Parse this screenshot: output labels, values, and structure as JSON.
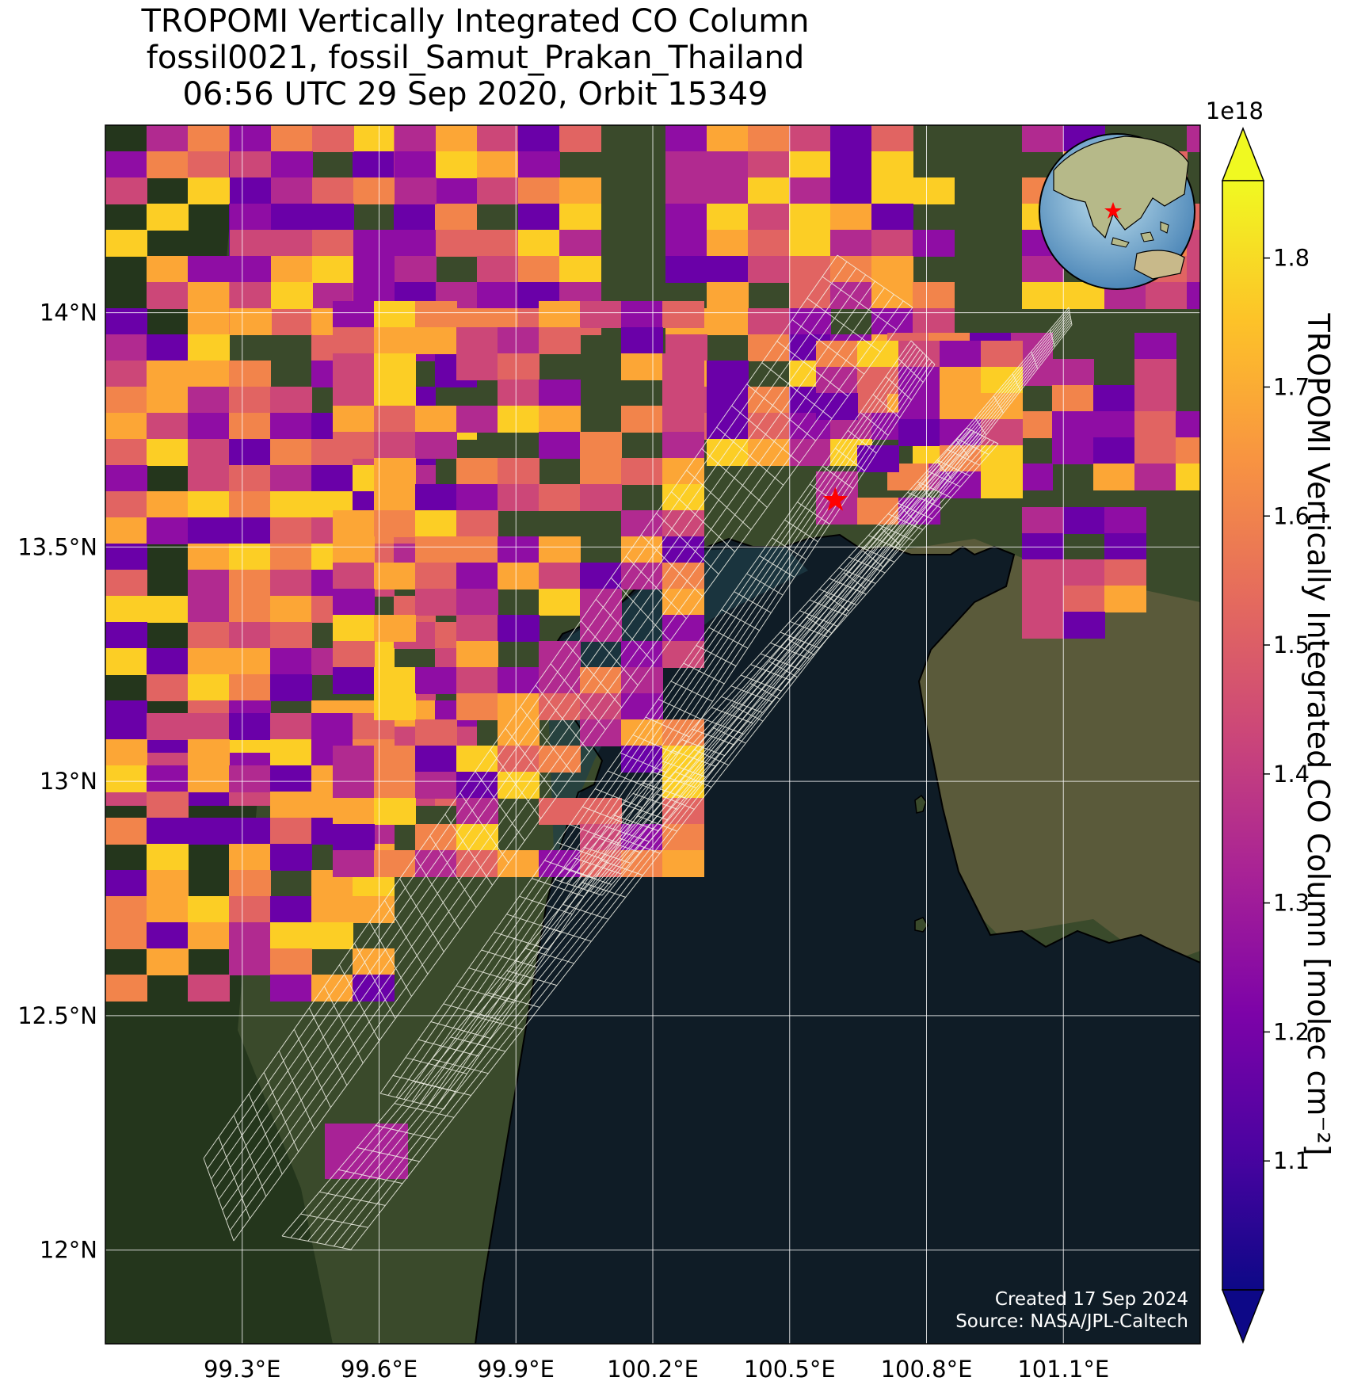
{
  "title": {
    "line1": "TROPOMI Vertically Integrated CO Column",
    "line2": "fossil0021, fossil_Samut_Prakan_Thailand",
    "line3": "06:56 UTC 29 Sep 2020, Orbit 15349"
  },
  "axes": {
    "x_ticks": [
      "99.3°E",
      "99.6°E",
      "99.9°E",
      "100.2°E",
      "100.5°E",
      "100.8°E",
      "101.1°E"
    ],
    "y_ticks": [
      "14°N",
      "13.5°N",
      "13°N",
      "12.5°N",
      "12°N"
    ],
    "x_tick_values": [
      99.3,
      99.6,
      99.9,
      100.2,
      100.5,
      100.8,
      101.1
    ],
    "y_tick_values": [
      14.0,
      13.5,
      13.0,
      12.5,
      12.0
    ],
    "lon_range": [
      99.0,
      101.4
    ],
    "lat_range": [
      11.8,
      14.4
    ],
    "grid": true
  },
  "colorbar": {
    "label": "TROPOMI Vertically Integrated CO Column [molec cm⁻²]",
    "exponent": "1e18",
    "ticks": [
      "1.1",
      "1.2",
      "1.3",
      "1.4",
      "1.5",
      "1.6",
      "1.7",
      "1.8"
    ],
    "tick_values": [
      1.1,
      1.2,
      1.3,
      1.4,
      1.5,
      1.6,
      1.7,
      1.8
    ],
    "range": [
      1.0,
      1.86
    ],
    "colormap": "plasma",
    "extend": "both"
  },
  "site": {
    "lon": 100.6,
    "lat": 13.6,
    "marker": "red-star-icon",
    "color": "#ff0000"
  },
  "credit": {
    "created": "Created 17 Sep 2024",
    "source": "Source: NASA/JPL-Caltech"
  },
  "colors": {
    "land": "#3c4a2c",
    "sea": "#0f1c26",
    "grid": "#ffffff",
    "footprint": "#f4f4ea"
  }
}
